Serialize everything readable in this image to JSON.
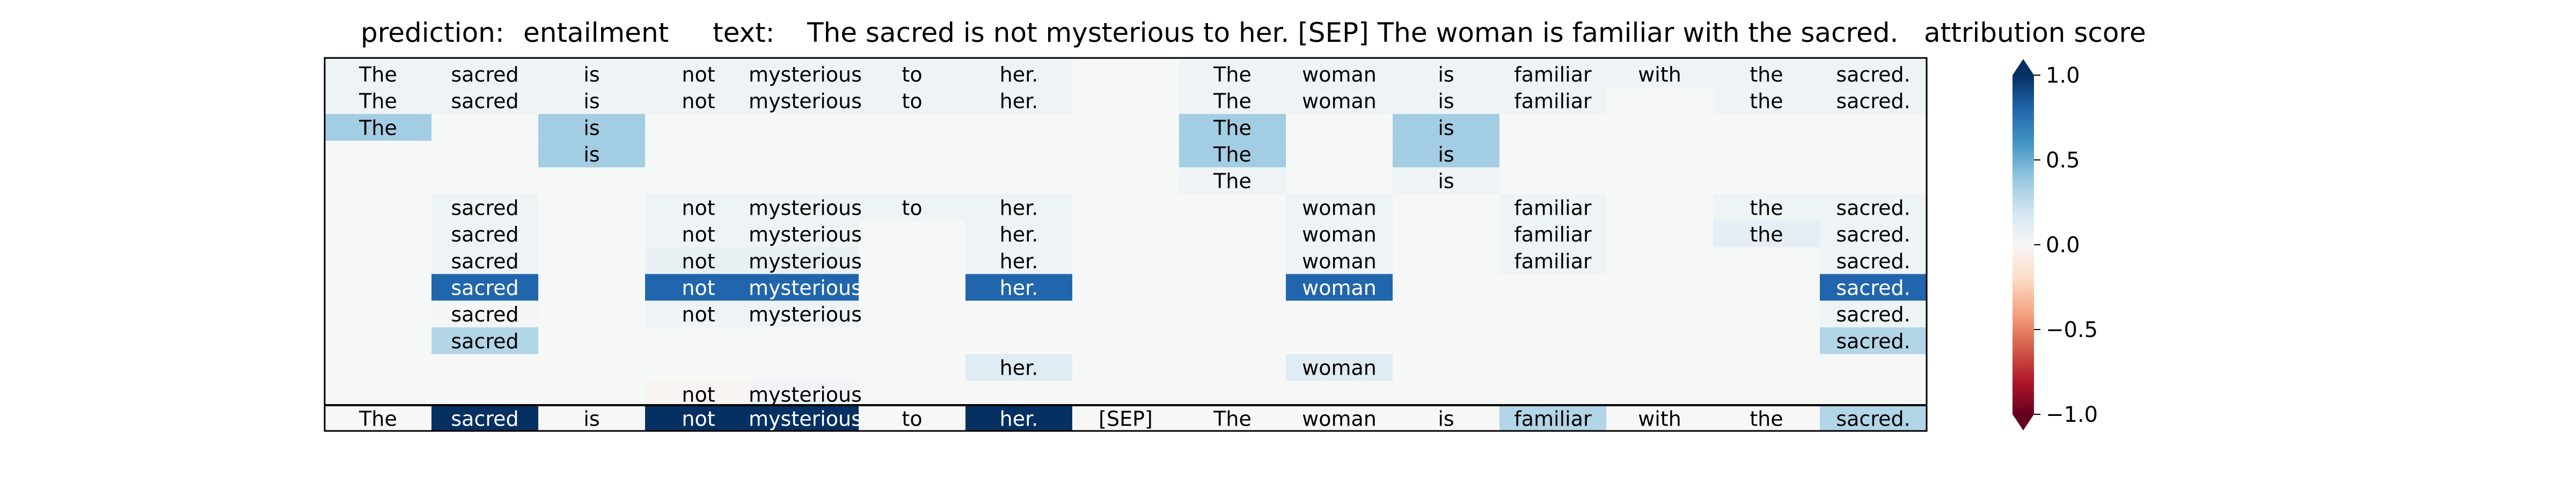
{
  "header": {
    "prediction_label": "prediction:",
    "prediction_value": "entailment",
    "text_label": "text:",
    "text_value": "The sacred is not mysterious to her. [SEP] The woman is familiar with the sacred.",
    "colorbar_title": "attribution score"
  },
  "colors": {
    "background": "#f6f7f7",
    "border": "#000000",
    "text_dark": "#000000",
    "text_light": "#ffffff",
    "negative_end": "#67001f",
    "positive_end": "#053061"
  },
  "chart_data": {
    "type": "heatmap",
    "colormap": "RdBu",
    "value_range": [
      -1,
      1
    ],
    "colorbar_ticks": [
      1.0,
      0.5,
      0.0,
      -0.5,
      -1.0
    ],
    "colorbar_tick_labels": [
      "1.0",
      "0.5",
      "0.0",
      "−0.5",
      "−1.0"
    ],
    "colorbar_extend": "both",
    "tokens": [
      "The",
      "sacred",
      "is",
      "not",
      "mysterious",
      "to",
      "her.",
      "[SEP]",
      "The",
      "woman",
      "is",
      "familiar",
      "with",
      "the",
      "sacred."
    ],
    "rows": [
      [
        0.05,
        0.05,
        0.05,
        0.05,
        0.05,
        0.05,
        0.05,
        null,
        0.05,
        0.05,
        0.05,
        0.05,
        0.05,
        0.05,
        0.05
      ],
      [
        0.05,
        0.05,
        0.05,
        0.05,
        0.05,
        0.05,
        0.05,
        null,
        0.05,
        0.05,
        0.05,
        0.05,
        null,
        0.05,
        0.05
      ],
      [
        0.35,
        null,
        0.35,
        null,
        null,
        null,
        null,
        null,
        0.35,
        null,
        0.35,
        null,
        null,
        null,
        null
      ],
      [
        null,
        null,
        0.35,
        null,
        null,
        null,
        null,
        null,
        0.35,
        null,
        0.35,
        null,
        null,
        null,
        null
      ],
      [
        null,
        null,
        null,
        null,
        null,
        null,
        null,
        null,
        0.05,
        null,
        0.05,
        null,
        null,
        null,
        null
      ],
      [
        null,
        0.05,
        null,
        0.05,
        0.05,
        0.05,
        0.05,
        null,
        null,
        0.05,
        null,
        0.05,
        null,
        0.05,
        0.05
      ],
      [
        null,
        0.05,
        null,
        0.05,
        0.05,
        null,
        0.05,
        null,
        null,
        0.05,
        null,
        0.05,
        null,
        0.1,
        0.05
      ],
      [
        null,
        0.05,
        null,
        0.08,
        0.08,
        null,
        0.05,
        null,
        null,
        0.05,
        null,
        0.05,
        null,
        null,
        0.05
      ],
      [
        null,
        0.8,
        null,
        0.8,
        0.8,
        null,
        0.8,
        null,
        null,
        0.8,
        null,
        null,
        null,
        null,
        0.8
      ],
      [
        null,
        0.02,
        null,
        0.05,
        0.05,
        null,
        null,
        null,
        null,
        null,
        null,
        null,
        null,
        null,
        0.05
      ],
      [
        null,
        0.3,
        null,
        null,
        null,
        null,
        null,
        null,
        null,
        null,
        null,
        null,
        null,
        null,
        0.3
      ],
      [
        null,
        null,
        null,
        null,
        null,
        null,
        0.12,
        null,
        null,
        0.12,
        null,
        null,
        null,
        null,
        null
      ],
      [
        null,
        null,
        null,
        -0.02,
        0.03,
        null,
        null,
        null,
        null,
        null,
        null,
        null,
        null,
        null,
        null
      ]
    ],
    "summary_row": [
      0.0,
      1.0,
      0.0,
      1.0,
      1.0,
      0.0,
      1.0,
      0.0,
      0.0,
      0.0,
      0.0,
      0.3,
      0.0,
      0.0,
      0.3
    ],
    "summary_labels": [
      "The",
      "sacred",
      "is",
      "not",
      "mysterious",
      "to",
      "her.",
      "[SEP]",
      "The",
      "woman",
      "is",
      "familiar",
      "with",
      "the",
      "sacred."
    ]
  }
}
